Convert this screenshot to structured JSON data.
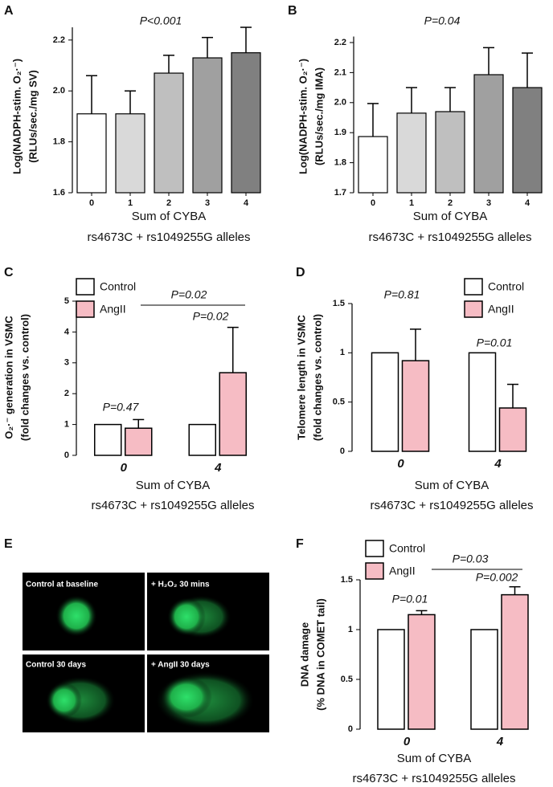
{
  "chart_data": [
    {
      "type": "bar",
      "panel": "A",
      "title": "P<0.001",
      "ylabel": [
        "Log(NADPH-stim. O₂·⁻)",
        "(RLUs/sec./mg SV)"
      ],
      "xlabel": [
        "Sum of CYBA",
        "rs4673C + rs1049255G alleles"
      ],
      "categories": [
        "0",
        "1",
        "2",
        "3",
        "4"
      ],
      "values": [
        1.91,
        1.91,
        2.07,
        2.13,
        2.15
      ],
      "errors": [
        0.15,
        0.09,
        0.07,
        0.08,
        0.1
      ],
      "colors": [
        "#ffffff",
        "#d9d9d9",
        "#bfbfbf",
        "#a0a0a0",
        "#808080"
      ],
      "ylim": [
        1.6,
        2.25
      ],
      "yticks": [
        1.6,
        1.8,
        {
          "value": 2,
          "label": "2.0"
        },
        2.2
      ]
    },
    {
      "type": "bar",
      "panel": "B",
      "title": "P=0.04",
      "ylabel": [
        "Log(NADPH-stim. O₂·⁻)",
        "(RLUs/sec./mg IMA)"
      ],
      "xlabel": [
        "Sum of CYBA",
        "rs4673C + rs1049255G alleles"
      ],
      "categories": [
        "0",
        "1",
        "2",
        "3",
        "4"
      ],
      "values": [
        1.887,
        1.965,
        1.97,
        2.093,
        2.05
      ],
      "errors": [
        0.11,
        0.085,
        0.08,
        0.09,
        0.115
      ],
      "colors": [
        "#ffffff",
        "#d9d9d9",
        "#bfbfbf",
        "#a0a0a0",
        "#808080"
      ],
      "ylim": [
        1.7,
        2.22
      ],
      "yticks": [
        1.7,
        1.8,
        1.9,
        {
          "value": 2,
          "label": "2.0"
        },
        2.1,
        2.2
      ]
    },
    {
      "type": "grouped-bar",
      "panel": "C",
      "ylabel": [
        "O₂·⁻ generation in VSMC",
        "(fold changes vs. control)"
      ],
      "xlabel": [
        "Sum of CYBA",
        "rs4673C + rs1049255G alleles"
      ],
      "categories": [
        "0",
        "4"
      ],
      "series": [
        {
          "name": "Control",
          "color": "#ffffff",
          "values": [
            1,
            1
          ]
        },
        {
          "name": "AngII",
          "color": "#f6bcc4",
          "values": [
            0.88,
            2.68
          ],
          "errors": [
            0.28,
            1.47
          ]
        }
      ],
      "annotations": [
        "P=0.47",
        "P=0.02",
        "P=0.02"
      ],
      "ylim": [
        0,
        5
      ],
      "yticks": [
        0,
        1,
        2,
        3,
        4,
        5
      ]
    },
    {
      "type": "grouped-bar",
      "panel": "D",
      "ylabel": [
        "Telomere length in VSMC",
        "(fold changes vs. control)"
      ],
      "xlabel": [
        "Sum of CYBA",
        "rs4673C + rs1049255G alleles"
      ],
      "categories": [
        "0",
        "4"
      ],
      "series": [
        {
          "name": "Control",
          "color": "#ffffff",
          "values": [
            1,
            1
          ]
        },
        {
          "name": "AngII",
          "color": "#f6bcc4",
          "values": [
            0.92,
            0.44
          ],
          "errors": [
            0.32,
            0.24
          ]
        }
      ],
      "annotations": [
        "P=0.81",
        "P=0.01"
      ],
      "ylim": [
        0,
        1.5
      ],
      "yticks": [
        0,
        0.5,
        1,
        1.5
      ]
    },
    {
      "type": "grouped-bar",
      "panel": "F",
      "ylabel": [
        "DNA damage",
        "(% DNA in COMET tail)"
      ],
      "xlabel": [
        "Sum of CYBA",
        "rs4673C + rs1049255G alleles"
      ],
      "categories": [
        "0",
        "4"
      ],
      "series": [
        {
          "name": "Control",
          "color": "#ffffff",
          "values": [
            1,
            1
          ]
        },
        {
          "name": "AngII",
          "color": "#f6bcc4",
          "values": [
            1.15,
            1.35
          ],
          "errors": [
            0.04,
            0.08
          ]
        }
      ],
      "annotations": [
        "P=0.01",
        "P=0.03",
        "P=0.002"
      ],
      "ylim": [
        0,
        1.5
      ],
      "yticks": [
        0,
        0.5,
        1,
        1.5
      ]
    }
  ],
  "image_panel": {
    "panel": "E",
    "captions": [
      "Control at baseline",
      "+ H₂O₂ 30 mins",
      "Control 30 days",
      "+ AngII 30 days"
    ]
  }
}
